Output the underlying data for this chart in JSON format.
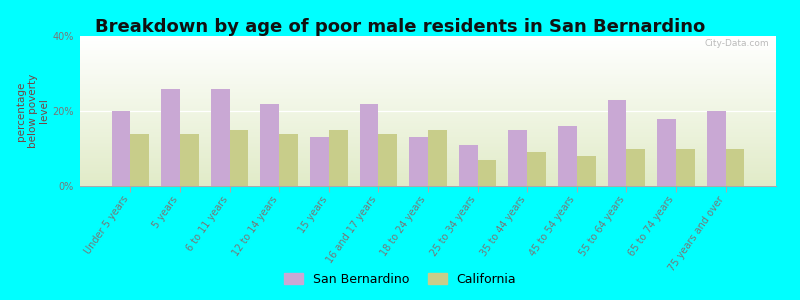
{
  "title": "Breakdown by age of poor male residents in San Bernardino",
  "ylabel": "percentage\nbelow poverty\nlevel",
  "categories": [
    "Under 5 years",
    "5 years",
    "6 to 11 years",
    "12 to 14 years",
    "15 years",
    "16 and 17 years",
    "18 to 24 years",
    "25 to 34 years",
    "35 to 44 years",
    "45 to 54 years",
    "55 to 64 years",
    "65 to 74 years",
    "75 years and over"
  ],
  "san_bernardino": [
    20,
    26,
    26,
    22,
    13,
    22,
    13,
    11,
    15,
    16,
    23,
    18,
    20
  ],
  "california": [
    14,
    14,
    15,
    14,
    15,
    14,
    15,
    7,
    9,
    8,
    10,
    10,
    10
  ],
  "sb_color": "#c9a8d4",
  "ca_color": "#c8cd8a",
  "bg_color": "#00ffff",
  "ylim": [
    0,
    40
  ],
  "yticks": [
    0,
    20,
    40
  ],
  "ytick_labels": [
    "0%",
    "20%",
    "40%"
  ],
  "title_fontsize": 13,
  "axis_label_fontsize": 7.5,
  "tick_fontsize": 7,
  "legend_labels": [
    "San Bernardino",
    "California"
  ],
  "watermark": "City-Data.com",
  "bar_width": 0.38
}
